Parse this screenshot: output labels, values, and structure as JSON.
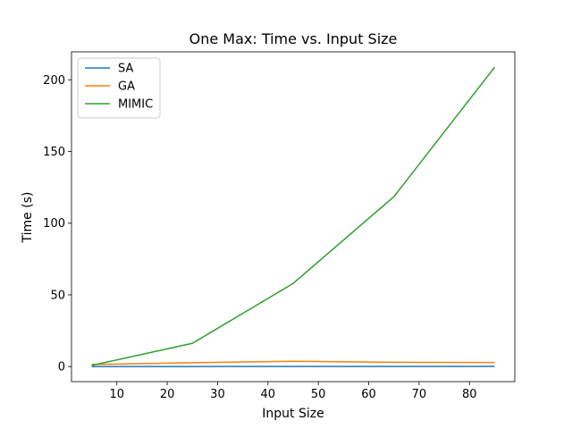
{
  "chart_data": {
    "type": "line",
    "title": "One Max: Time vs. Input Size",
    "xlabel": "Input Size",
    "ylabel": "Time (s)",
    "xlim": [
      1,
      89
    ],
    "ylim": [
      -10.5,
      219.5
    ],
    "xticks": [
      10,
      20,
      30,
      40,
      50,
      60,
      70,
      80
    ],
    "yticks": [
      0,
      50,
      100,
      150,
      200
    ],
    "grid": false,
    "legend_position": "upper-left",
    "x": [
      5,
      25,
      45,
      65,
      85
    ],
    "series": [
      {
        "name": "SA",
        "color": "#1f77b4",
        "values": [
          0.02,
          0.05,
          0.1,
          0.1,
          0.15
        ]
      },
      {
        "name": "GA",
        "color": "#ff7f0e",
        "values": [
          1.5,
          2.7,
          3.7,
          3.0,
          2.8
        ]
      },
      {
        "name": "MIMIC",
        "color": "#2ca02c",
        "values": [
          0.8,
          16.2,
          58.0,
          118.5,
          208.8
        ]
      }
    ]
  }
}
